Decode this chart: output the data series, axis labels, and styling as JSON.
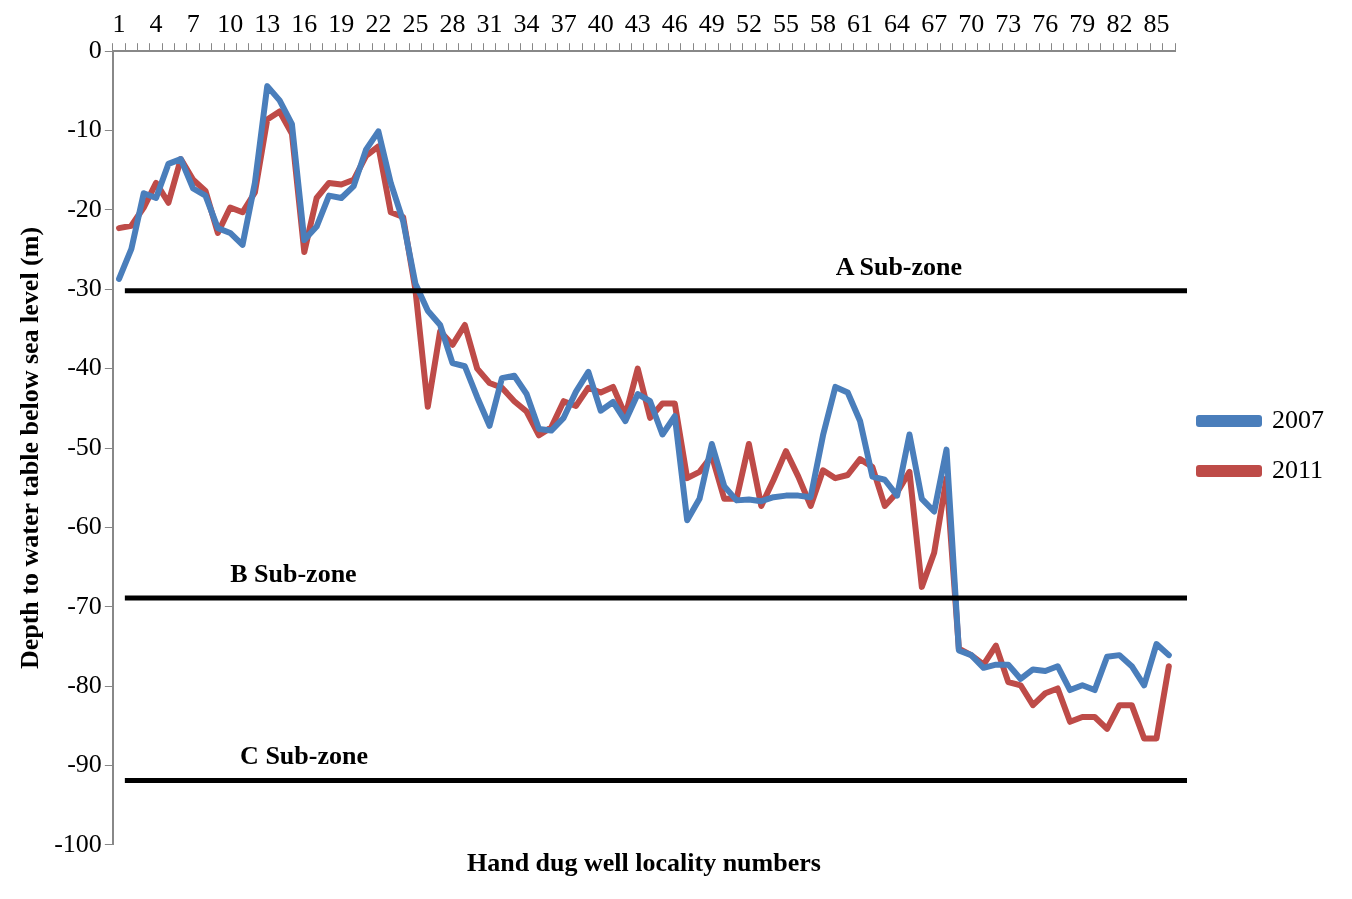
{
  "chart_data": {
    "type": "line",
    "xlabel": "Hand dug well locality numbers",
    "ylabel": "Depth to water table below sea level (m)",
    "categories": [
      "1",
      null,
      null,
      "4",
      null,
      null,
      "7",
      null,
      null,
      "10",
      null,
      null,
      "13",
      null,
      null,
      "16",
      null,
      null,
      "19",
      null,
      null,
      "22",
      null,
      null,
      "25",
      null,
      null,
      "28",
      null,
      null,
      "31",
      null,
      null,
      "34",
      null,
      null,
      "37",
      null,
      null,
      "40",
      null,
      null,
      "43",
      null,
      null,
      "46",
      null,
      null,
      "49",
      null,
      null,
      "52",
      null,
      null,
      "55",
      null,
      null,
      "58",
      null,
      null,
      "61",
      null,
      null,
      "64",
      null,
      null,
      "67",
      null,
      null,
      "70",
      null,
      null,
      "73",
      null,
      null,
      "76",
      null,
      null,
      "79",
      null,
      null,
      "82",
      null,
      null,
      "85",
      null
    ],
    "series": [
      {
        "name": "2007",
        "color": "#4a7ebb",
        "values": [
          -28.7,
          -24.9,
          -17.9,
          -18.5,
          -14.2,
          -13.6,
          -17.3,
          -18.2,
          -22.3,
          -22.9,
          -24.4,
          -16.6,
          -4.4,
          -6.2,
          -9.2,
          -23.8,
          -22.1,
          -18.2,
          -18.5,
          -17.0,
          -12.4,
          -10.1,
          -16.6,
          -21.4,
          -29.3,
          -32.7,
          -34.5,
          -39.3,
          -39.7,
          -43.6,
          -47.2,
          -41.2,
          -40.9,
          -43.2,
          -47.6,
          -47.8,
          -46.2,
          -42.9,
          -40.4,
          -45.3,
          -44.2,
          -46.6,
          -43.2,
          -44.1,
          -48.3,
          -46.0,
          -59.1,
          -56.4,
          -49.5,
          -54.8,
          -56.6,
          -56.5,
          -56.7,
          -56.2,
          -56.0,
          -56.0,
          -56.2,
          -48.4,
          -42.3,
          -43.0,
          -46.6,
          -53.6,
          -54.0,
          -56.0,
          -48.3,
          -56.4,
          -58.0,
          -50.2,
          -75.5,
          -76.1,
          -77.7,
          -77.3,
          -77.3,
          -79.1,
          -77.9,
          -78.1,
          -77.5,
          -80.5,
          -79.9,
          -80.5,
          -76.3,
          -76.1,
          -77.5,
          -79.9,
          -74.7,
          -76.1
        ]
      },
      {
        "name": "2011",
        "color": "#be4b48",
        "values": [
          -22.3,
          -22.0,
          -19.7,
          -16.6,
          -19.1,
          -13.6,
          -16.2,
          -17.6,
          -22.9,
          -19.7,
          -20.3,
          -17.8,
          -8.6,
          -7.6,
          -10.4,
          -25.3,
          -18.5,
          -16.6,
          -16.8,
          -16.2,
          -13.2,
          -12.0,
          -20.3,
          -20.9,
          -30.1,
          -44.8,
          -35.3,
          -37.0,
          -34.5,
          -40.0,
          -41.8,
          -42.4,
          -44.1,
          -45.4,
          -48.4,
          -47.4,
          -44.1,
          -44.7,
          -42.4,
          -43.0,
          -42.3,
          -45.9,
          -40.0,
          -46.2,
          -44.4,
          -44.4,
          -53.8,
          -53.0,
          -51.0,
          -56.4,
          -56.4,
          -49.5,
          -57.3,
          -54.0,
          -50.4,
          -53.6,
          -57.3,
          -52.8,
          -53.8,
          -53.4,
          -51.4,
          -52.4,
          -57.3,
          -55.6,
          -53.0,
          -67.5,
          -63.2,
          -53.8,
          -75.3,
          -76.1,
          -77.3,
          -74.9,
          -79.5,
          -79.9,
          -82.4,
          -80.9,
          -80.3,
          -84.5,
          -83.9,
          -83.9,
          -85.4,
          -82.4,
          -82.4,
          -86.6,
          -86.6,
          -77.5
        ]
      }
    ],
    "ylim": [
      -100,
      0
    ],
    "yticks": [
      -100,
      -90,
      -80,
      -70,
      -60,
      -50,
      -40,
      -30,
      -20,
      -10,
      0
    ],
    "ref_lines": [
      {
        "axis": "y",
        "value": -30.2,
        "label": "A Sub-zone",
        "color": "#000000"
      },
      {
        "axis": "y",
        "value": -68.9,
        "label": "B Sub-zone",
        "color": "#000000"
      },
      {
        "axis": "y",
        "value": -91.9,
        "label": "C Sub-zone",
        "color": "#000000"
      }
    ],
    "grid": false,
    "legend": "right",
    "marker": "none",
    "line_style": "solid"
  }
}
